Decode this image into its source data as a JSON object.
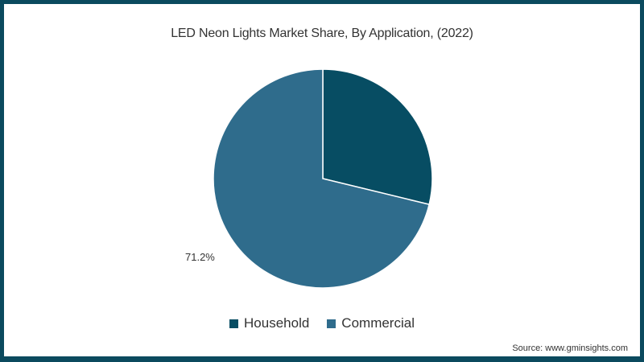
{
  "chart_data": {
    "type": "pie",
    "title": "LED Neon Lights Market Share, By Application, (2022)",
    "categories": [
      "Household",
      "Commercial"
    ],
    "values": [
      28.8,
      71.2
    ],
    "colors": [
      "#074d63",
      "#2f6c8c"
    ],
    "data_labels": [
      {
        "category": "Commercial",
        "text": "71.2%"
      }
    ],
    "legend_position": "bottom",
    "start_angle": "12 o'clock, clockwise"
  },
  "title": "LED Neon Lights Market Share, By Application, (2022)",
  "labels": {
    "commercial_pct": "71.2%"
  },
  "legend": {
    "items": [
      {
        "label": "Household",
        "color": "#074d63"
      },
      {
        "label": "Commercial",
        "color": "#2f6c8c"
      }
    ]
  },
  "source": "Source: www.gminsights.com",
  "colors": {
    "frame": "#0b4a5e",
    "household": "#074d63",
    "commercial": "#2f6c8c"
  }
}
